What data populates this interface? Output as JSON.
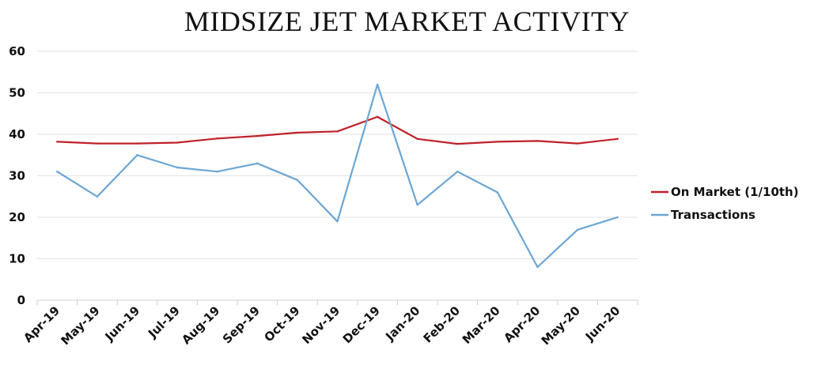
{
  "chart_data": {
    "type": "line",
    "title": "MIDSIZE JET MARKET ACTIVITY",
    "xlabel": "",
    "ylabel": "",
    "categories": [
      "Apr-19",
      "May-19",
      "Jun-19",
      "Jul-19",
      "Aug-19",
      "Sep-19",
      "Oct-19",
      "Nov-19",
      "Dec-19",
      "Jan-20",
      "Feb-20",
      "Mar-20",
      "Apr-20",
      "May-20",
      "Jun-20"
    ],
    "ylim": [
      0,
      60
    ],
    "yticks": [
      0,
      10,
      20,
      30,
      40,
      50,
      60
    ],
    "grid": true,
    "legend_position": "right",
    "series": [
      {
        "name": "On Market (1/10th)",
        "color": "#c0202a",
        "values": [
          38.2,
          37.8,
          37.8,
          38.0,
          39.0,
          39.6,
          40.4,
          40.7,
          44.2,
          38.9,
          37.7,
          38.2,
          38.4,
          37.8,
          38.9
        ]
      },
      {
        "name": "Transactions",
        "color": "#6ca6d4",
        "values": [
          31,
          25,
          35,
          32,
          31,
          33,
          29,
          19,
          52,
          23,
          31,
          26,
          8,
          17,
          20
        ]
      }
    ]
  }
}
